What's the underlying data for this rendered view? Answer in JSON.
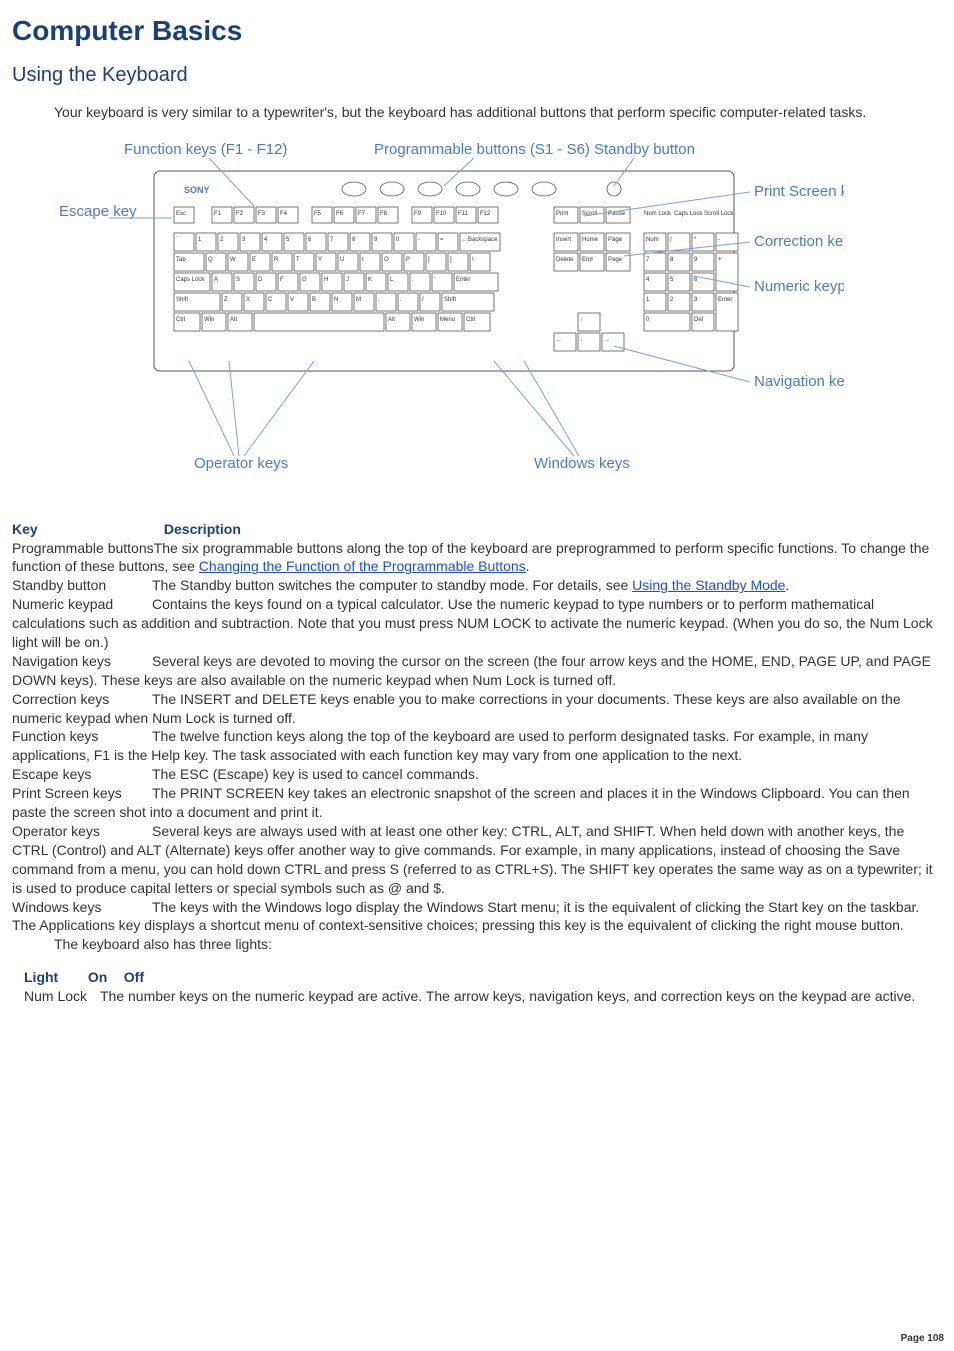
{
  "page": {
    "title": "Computer Basics",
    "subtitle": "Using the Keyboard",
    "intro": "Your keyboard is very similar to a typewriter's, but the keyboard has additional buttons that perform specific computer-related tasks.",
    "followup": "The keyboard also has three lights:",
    "footer": "Page 108"
  },
  "diagram": {
    "labels": {
      "function_keys": "Function keys (F1 - F12)",
      "programmable": "Programmable buttons (S1 - S6)",
      "standby": "Standby button",
      "escape": "Escape key",
      "print_screen": "Print Screen key",
      "correction": "Correction keys",
      "numeric": "Numeric keypad",
      "navigation": "Navigation keys",
      "operator": "Operator keys",
      "windows": "Windows keys"
    },
    "colors": {
      "label_text": "#4a7bbf",
      "lead_line": "#7f9fd0",
      "key_stroke": "#555555",
      "key_fill": "#ffffff",
      "background": "#ffffff"
    },
    "brand": "SONY",
    "func_row": [
      "Esc",
      "F1",
      "F2",
      "F3",
      "F4",
      "F5",
      "F6",
      "F7",
      "F8",
      "F9",
      "F10",
      "F11",
      "F12"
    ],
    "sys_keys": [
      "Print Screen",
      "Scroll Lock",
      "Pause"
    ],
    "lock_lights": [
      "Num Lock",
      "Caps Lock",
      "Scroll Lock"
    ],
    "nav_block_top": [
      "Insert",
      "Home",
      "Page Up"
    ],
    "nav_block_bottom": [
      "Delete",
      "End",
      "Page Down"
    ],
    "numpad": [
      [
        "Num Lock",
        "/",
        "*",
        "-"
      ],
      [
        "7 Home",
        "8 ↑",
        "9 PgUp",
        "+"
      ],
      [
        "4 ←",
        "5",
        "6 →",
        ""
      ],
      [
        "1 End",
        "2 ↓",
        "3 PgDn",
        "Enter"
      ],
      [
        "0 Ins",
        "",
        "Del",
        ""
      ]
    ],
    "qwerty_rows": [
      [
        "`",
        "1",
        "2",
        "3",
        "4",
        "5",
        "6",
        "7",
        "8",
        "9",
        "0",
        "-",
        "=",
        "←Backspace"
      ],
      [
        "Tab",
        "Q",
        "W",
        "E",
        "R",
        "T",
        "Y",
        "U",
        "I",
        "O",
        "P",
        "[",
        "]",
        "\\"
      ],
      [
        "Caps Lock",
        "A",
        "S",
        "D",
        "F",
        "G",
        "H",
        "J",
        "K",
        "L",
        ";",
        "'",
        "Enter"
      ],
      [
        "Shift",
        "Z",
        "X",
        "C",
        "V",
        "B",
        "N",
        "M",
        ",",
        ".",
        "/",
        "Shift"
      ],
      [
        "Ctrl",
        "Win",
        "Alt",
        " ",
        "Alt",
        "Win",
        "Menu",
        "Ctrl"
      ]
    ]
  },
  "table": {
    "headers": [
      "Key",
      "Description"
    ],
    "rows": [
      {
        "key": "Programmable buttons",
        "desc_pre": "The six programmable buttons along the top of the keyboard are preprogrammed to perform specific functions. To change the function of these buttons, see ",
        "link": "Changing the Function of the Programmable Buttons",
        "desc_post": "."
      },
      {
        "key": "Standby button",
        "desc_pre": "The Standby button switches the computer to standby mode. For details, see ",
        "link": "Using the Standby Mode",
        "desc_post": "."
      },
      {
        "key": "Numeric keypad",
        "desc_pre": "Contains the keys found on a typical calculator. Use the numeric keypad to type numbers or to perform mathematical calculations such as addition and subtraction. Note that you must press NUM LOCK to activate the numeric keypad. (When you do so, the Num Lock light will be on.)",
        "link": "",
        "desc_post": ""
      },
      {
        "key": "Navigation keys",
        "desc_pre": "Several keys are devoted to moving the cursor on the screen (the four arrow keys and the HOME, END, PAGE UP, and PAGE DOWN keys). These keys are also available on the numeric keypad when Num Lock is turned off.",
        "link": "",
        "desc_post": ""
      },
      {
        "key": "Correction keys",
        "desc_pre": "The INSERT and DELETE keys enable you to make corrections in your documents. These keys are also available on the numeric keypad when Num Lock is turned off.",
        "link": "",
        "desc_post": ""
      },
      {
        "key": "Function keys",
        "desc_pre": "The twelve function keys along the top of the keyboard are used to perform designated tasks. For example, in many applications, F1 is the Help key. The task associated with each function key may vary from one application to the next.",
        "link": "",
        "desc_post": ""
      },
      {
        "key": "Escape keys",
        "desc_pre": "The ESC (Escape) key is used to cancel commands.",
        "link": "",
        "desc_post": ""
      },
      {
        "key": "Print Screen keys",
        "desc_pre": "The PRINT SCREEN key takes an electronic snapshot of the screen and places it in the Windows Clipboard. You can then paste the screen shot into a document and print it.",
        "link": "",
        "desc_post": ""
      },
      {
        "key": "Operator keys",
        "desc_pre": "Several keys are always used with at least one other key: CTRL, ALT, and SHIFT. When held down with another keys, the CTRL (Control) and ALT (Alternate) keys offer another way to give commands. For example, in many applications, instead of choosing the Save command from a menu, you can hold down CTRL and press S (referred to as CTRL+",
        "emph": "S",
        "desc_post": "). The SHIFT key operates the same way as on a typewriter; it is used to produce capital letters or special symbols such as @ and $."
      },
      {
        "key": "Windows keys",
        "desc_pre": "The keys with the Windows logo display the Windows Start menu; it is the equivalent of clicking the Start key on the taskbar. The Applications key displays a shortcut menu of context-sensitive choices; pressing this key is the equivalent of clicking the right mouse button.",
        "link": "",
        "desc_post": ""
      }
    ]
  },
  "light_table": {
    "headers": [
      "Light",
      "On",
      "Off"
    ],
    "rows": [
      {
        "light": "Num Lock",
        "on": "The number keys on the numeric keypad are active.",
        "off": "The arrow keys, navigation keys, and correction keys on the keypad are active."
      }
    ]
  }
}
